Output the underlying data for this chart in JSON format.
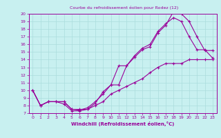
{
  "title": "Courbe du refroidissement éolien pour Rodez (12)",
  "xlabel": "Windchill (Refroidissement éolien,°C)",
  "bg_color": "#c8f0f0",
  "line_color": "#990099",
  "grid_color": "#aadddd",
  "axis_color": "#660066",
  "xlim": [
    -0.5,
    23.5
  ],
  "ylim": [
    7,
    20
  ],
  "xticks": [
    0,
    1,
    2,
    3,
    4,
    5,
    6,
    7,
    8,
    9,
    10,
    11,
    12,
    13,
    14,
    15,
    16,
    17,
    18,
    19,
    20,
    21,
    22,
    23
  ],
  "yticks": [
    7,
    8,
    9,
    10,
    11,
    12,
    13,
    14,
    15,
    16,
    17,
    18,
    19,
    20
  ],
  "line1_x": [
    0,
    1,
    2,
    3,
    4,
    5,
    6,
    7,
    8,
    9,
    10,
    11,
    12,
    13,
    14,
    15,
    16,
    17,
    18,
    19,
    20,
    21,
    22,
    23
  ],
  "line1_y": [
    10,
    8,
    8.5,
    8.5,
    8.2,
    7.3,
    7.3,
    7.5,
    8.3,
    9.8,
    10.7,
    10.7,
    13.2,
    14.3,
    15.3,
    15.7,
    17.5,
    18.5,
    20.3,
    20,
    19,
    17,
    15.2,
    15.2
  ],
  "line2_x": [
    0,
    1,
    2,
    3,
    4,
    5,
    6,
    7,
    8,
    9,
    10,
    11,
    12,
    13,
    14,
    15,
    16,
    17,
    18,
    19,
    20,
    21,
    22,
    23
  ],
  "line2_y": [
    10,
    8,
    8.5,
    8.5,
    8.5,
    7.5,
    7.4,
    7.7,
    8.5,
    9.5,
    10.7,
    13.2,
    13.2,
    14.5,
    15.5,
    16.0,
    17.7,
    18.7,
    19.5,
    19.0,
    17.0,
    15.3,
    15.3,
    14.2
  ],
  "line3_x": [
    0,
    1,
    2,
    3,
    4,
    5,
    6,
    7,
    8,
    9,
    10,
    11,
    12,
    13,
    14,
    15,
    16,
    17,
    18,
    19,
    20,
    21,
    22,
    23
  ],
  "line3_y": [
    10,
    8,
    8.5,
    8.5,
    8.5,
    7.5,
    7.5,
    7.5,
    8.0,
    8.5,
    9.5,
    10.0,
    10.5,
    11.0,
    11.5,
    12.3,
    13.0,
    13.5,
    13.5,
    13.5,
    14.0,
    14.0,
    14.0,
    14.0
  ]
}
